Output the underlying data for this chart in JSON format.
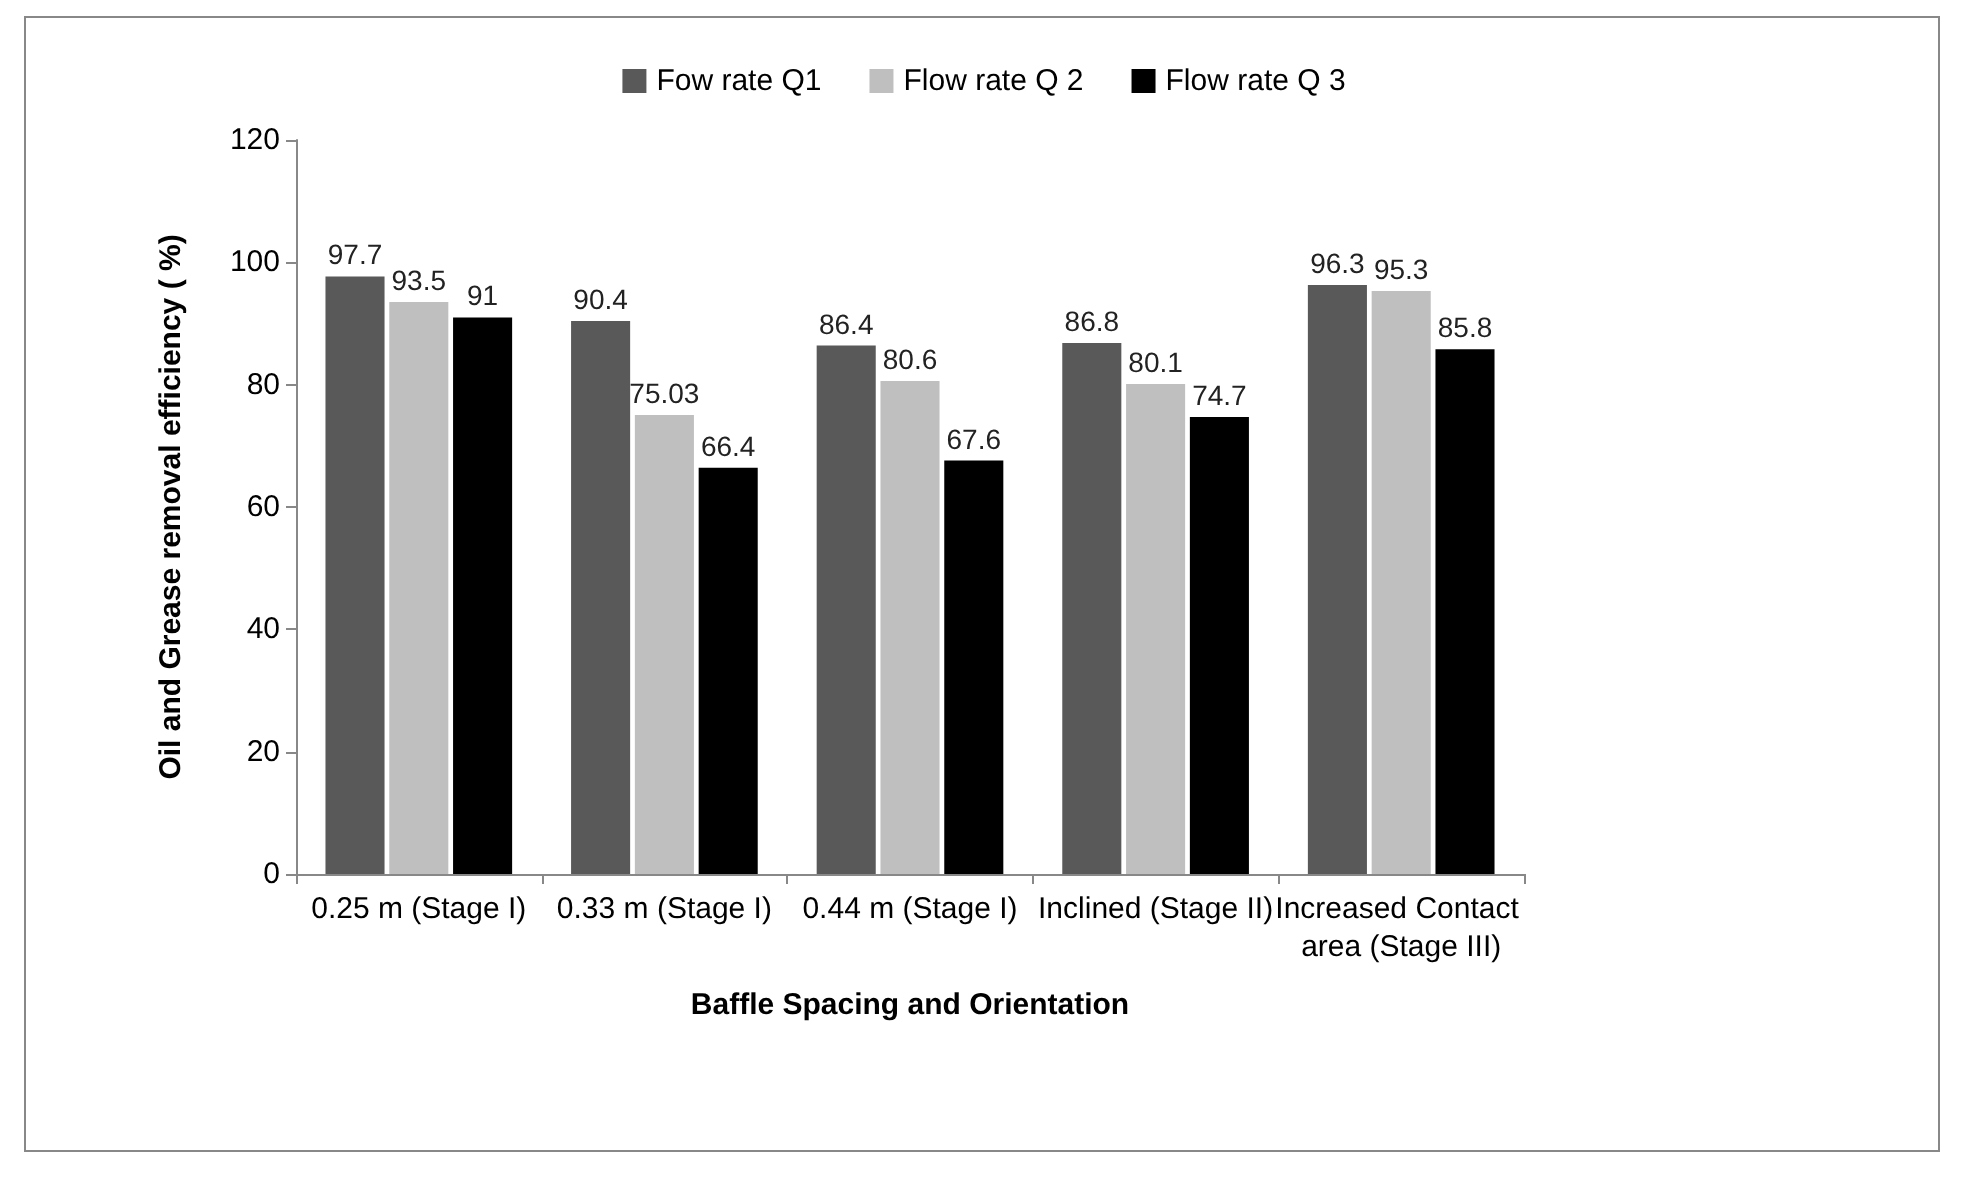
{
  "chart_data": {
    "type": "bar",
    "xlabel": "Baffle Spacing and Orientation",
    "ylabel": "Oil and Grease removal efficiency ( %)",
    "categories": [
      "0.25 m (Stage I)",
      "0.33 m (Stage I)",
      "0.44 m (Stage I)",
      "Inclined (Stage II)",
      "Increased Contact area (Stage III)"
    ],
    "series": [
      {
        "name": "Fow rate Q1",
        "color": "#595959",
        "values": [
          97.7,
          90.4,
          86.4,
          86.8,
          96.3
        ]
      },
      {
        "name": "Flow rate Q 2",
        "color": "#bfbfbf",
        "values": [
          93.5,
          75.03,
          80.6,
          80.1,
          95.3
        ]
      },
      {
        "name": "Flow rate Q 3",
        "color": "#000000",
        "values": [
          91,
          66.4,
          67.6,
          74.7,
          85.8
        ]
      }
    ],
    "ylim": [
      0,
      120
    ],
    "yticks": [
      0,
      20,
      40,
      60,
      80,
      100,
      120
    ],
    "grid": false,
    "legend": "top",
    "data_labels": true
  }
}
